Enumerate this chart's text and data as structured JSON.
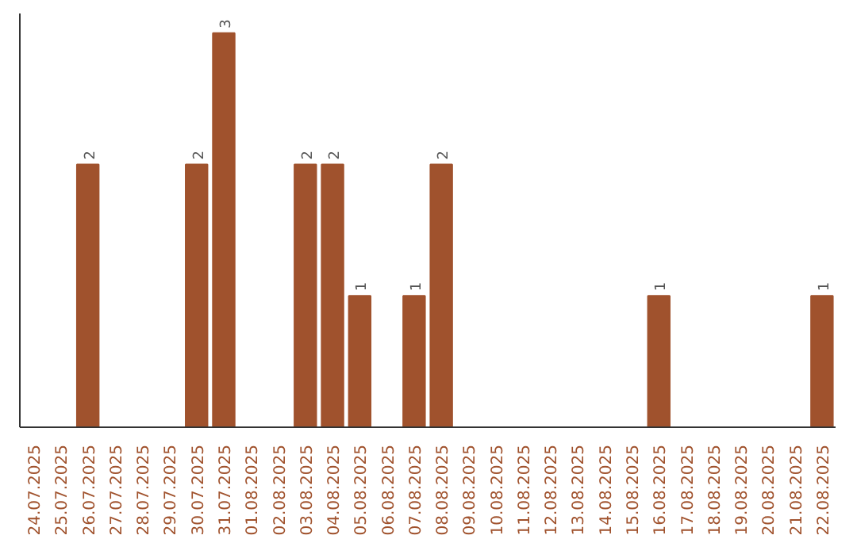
{
  "chart_data": {
    "type": "bar",
    "categories": [
      "24.07.2025",
      "25.07.2025",
      "26.07.2025",
      "27.07.2025",
      "28.07.2025",
      "29.07.2025",
      "30.07.2025",
      "31.07.2025",
      "01.08.2025",
      "02.08.2025",
      "03.08.2025",
      "04.08.2025",
      "05.08.2025",
      "06.08.2025",
      "07.08.2025",
      "08.08.2025",
      "09.08.2025",
      "10.08.2025",
      "11.08.2025",
      "12.08.2025",
      "13.08.2025",
      "14.08.2025",
      "15.08.2025",
      "16.08.2025",
      "17.08.2025",
      "18.08.2025",
      "19.08.2025",
      "20.08.2025",
      "21.08.2025",
      "22.08.2025"
    ],
    "values": [
      0,
      0,
      2,
      0,
      0,
      0,
      2,
      3,
      0,
      0,
      2,
      2,
      1,
      0,
      1,
      2,
      0,
      0,
      0,
      0,
      0,
      0,
      0,
      1,
      0,
      0,
      0,
      0,
      0,
      1
    ],
    "value_labels": [
      null,
      null,
      "2",
      null,
      null,
      null,
      "2",
      "3",
      null,
      null,
      "2",
      "2",
      "1",
      null,
      "1",
      "2",
      null,
      null,
      null,
      null,
      null,
      null,
      null,
      "1",
      null,
      null,
      null,
      null,
      null,
      "1"
    ],
    "color": "#a0522d",
    "tick_labels": "x",
    "grid": false
  }
}
